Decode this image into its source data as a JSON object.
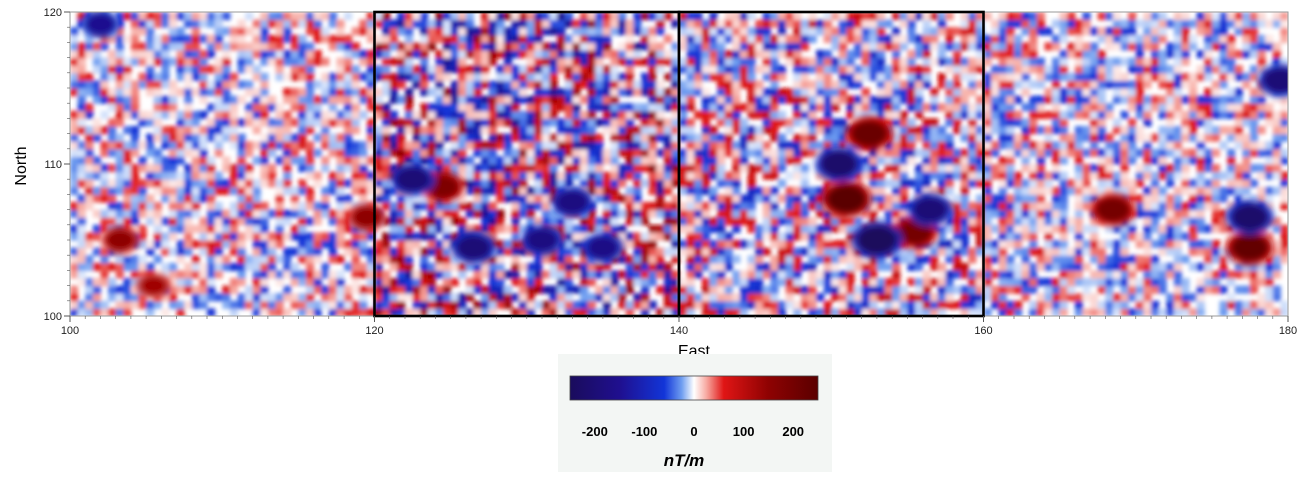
{
  "chart_data": {
    "type": "heatmap",
    "title": "",
    "xlabel": "East",
    "ylabel": "North",
    "xlim": [
      100,
      180
    ],
    "ylim": [
      100,
      120
    ],
    "x_ticks": [
      {
        "value": 100,
        "label": "100"
      },
      {
        "value": 120,
        "label": "120"
      },
      {
        "value": 140,
        "label": "140"
      },
      {
        "value": 160,
        "label": "160"
      },
      {
        "value": 180,
        "label": "180"
      }
    ],
    "y_ticks": [
      {
        "value": 100,
        "label": "100"
      },
      {
        "value": 110,
        "label": "110"
      },
      {
        "value": 120,
        "label": "120"
      }
    ],
    "highlighted_panels": [
      {
        "x_range": [
          120,
          140
        ],
        "y_range": [
          100,
          120
        ]
      },
      {
        "x_range": [
          140,
          160
        ],
        "y_range": [
          100,
          120
        ]
      }
    ],
    "anomalies": [
      {
        "x": 151,
        "y": 107.7,
        "value": 250,
        "sign": "positive"
      },
      {
        "x": 152.5,
        "y": 112,
        "value": 220,
        "sign": "positive"
      },
      {
        "x": 155.5,
        "y": 105.5,
        "value": 200,
        "sign": "positive"
      },
      {
        "x": 153,
        "y": 105,
        "value": -250,
        "sign": "negative"
      },
      {
        "x": 150.5,
        "y": 110,
        "value": -220,
        "sign": "negative"
      },
      {
        "x": 156.5,
        "y": 107,
        "value": -200,
        "sign": "negative"
      },
      {
        "x": 124.5,
        "y": 108.5,
        "value": 180,
        "sign": "positive"
      },
      {
        "x": 122.5,
        "y": 109,
        "value": -200,
        "sign": "negative"
      },
      {
        "x": 126.5,
        "y": 104.5,
        "value": -200,
        "sign": "negative"
      },
      {
        "x": 131,
        "y": 105,
        "value": -180,
        "sign": "negative"
      },
      {
        "x": 133,
        "y": 107.5,
        "value": -180,
        "sign": "negative"
      },
      {
        "x": 135,
        "y": 104.5,
        "value": -170,
        "sign": "negative"
      },
      {
        "x": 168.5,
        "y": 107,
        "value": 200,
        "sign": "positive"
      },
      {
        "x": 177.5,
        "y": 104.5,
        "value": 230,
        "sign": "positive"
      },
      {
        "x": 177.5,
        "y": 106.5,
        "value": -220,
        "sign": "negative"
      },
      {
        "x": 179.5,
        "y": 115.5,
        "value": -200,
        "sign": "negative"
      },
      {
        "x": 102,
        "y": 119.2,
        "value": -150,
        "sign": "negative"
      },
      {
        "x": 103.3,
        "y": 105,
        "value": 150,
        "sign": "positive"
      },
      {
        "x": 105.5,
        "y": 102,
        "value": 130,
        "sign": "positive"
      },
      {
        "x": 119.5,
        "y": 106.5,
        "value": 150,
        "sign": "positive"
      }
    ],
    "colorbar": {
      "range": [
        -250,
        250
      ],
      "ticks": [
        {
          "value": -200,
          "label": "-200"
        },
        {
          "value": -100,
          "label": "-100"
        },
        {
          "value": 0,
          "label": "0"
        },
        {
          "value": 100,
          "label": "100"
        },
        {
          "value": 200,
          "label": "200"
        }
      ],
      "stops": [
        {
          "value": -250,
          "color": "#1a0c5c"
        },
        {
          "value": -150,
          "color": "#1f0f8f"
        },
        {
          "value": -60,
          "color": "#1235d8"
        },
        {
          "value": -25,
          "color": "#6e9df0"
        },
        {
          "value": 0,
          "color": "#ffffff"
        },
        {
          "value": 25,
          "color": "#f7aaa2"
        },
        {
          "value": 60,
          "color": "#e01515"
        },
        {
          "value": 150,
          "color": "#8e0202"
        },
        {
          "value": 250,
          "color": "#5a0000"
        }
      ],
      "unit": "nT/m"
    },
    "grid": false,
    "legend": "colorbar-bottom-center"
  }
}
